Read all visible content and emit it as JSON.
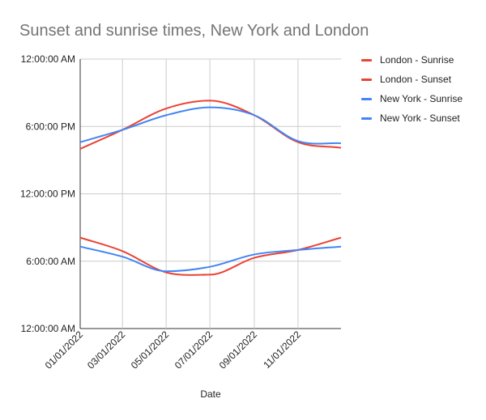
{
  "chart_data": {
    "type": "line",
    "title": "Sunset and sunrise times, New York and London",
    "xlabel": "Date",
    "ylabel": "",
    "x_ticks": [
      "01/01/2022",
      "03/01/2022",
      "05/01/2022",
      "07/01/2022",
      "09/01/2022",
      "11/01/2022"
    ],
    "x_tick_days": [
      0,
      59,
      120,
      181,
      243,
      304
    ],
    "xlim_days": [
      0,
      364
    ],
    "y_ticks": [
      "12:00:00 AM",
      "6:00:00 AM",
      "12:00:00 PM",
      "6:00:00 PM",
      "12:00:00 AM"
    ],
    "ylim_hours": [
      0,
      24
    ],
    "y_tick_hours": [
      0,
      6,
      12,
      18,
      24
    ],
    "grid": true,
    "legend_position": "right",
    "series": [
      {
        "name": "London - Sunrise",
        "color": "#ea4335",
        "x_days": [
          0,
          59,
          120,
          181,
          243,
          304,
          364
        ],
        "y_hours": [
          8.1,
          6.9,
          5.0,
          4.8,
          6.3,
          7.0,
          8.1
        ]
      },
      {
        "name": "London - Sunset",
        "color": "#ea4335",
        "x_days": [
          0,
          59,
          120,
          181,
          243,
          304,
          364
        ],
        "y_hours": [
          16.0,
          17.7,
          19.6,
          20.3,
          19.0,
          16.6,
          16.1
        ]
      },
      {
        "name": "New York - Sunrise",
        "color": "#4285f4",
        "x_days": [
          0,
          59,
          120,
          181,
          243,
          304,
          364
        ],
        "y_hours": [
          7.3,
          6.4,
          5.1,
          5.5,
          6.6,
          7.0,
          7.3
        ]
      },
      {
        "name": "New York - Sunset",
        "color": "#4285f4",
        "x_days": [
          0,
          59,
          120,
          181,
          243,
          304,
          364
        ],
        "y_hours": [
          16.6,
          17.7,
          19.0,
          19.7,
          19.0,
          16.7,
          16.5
        ]
      }
    ]
  }
}
